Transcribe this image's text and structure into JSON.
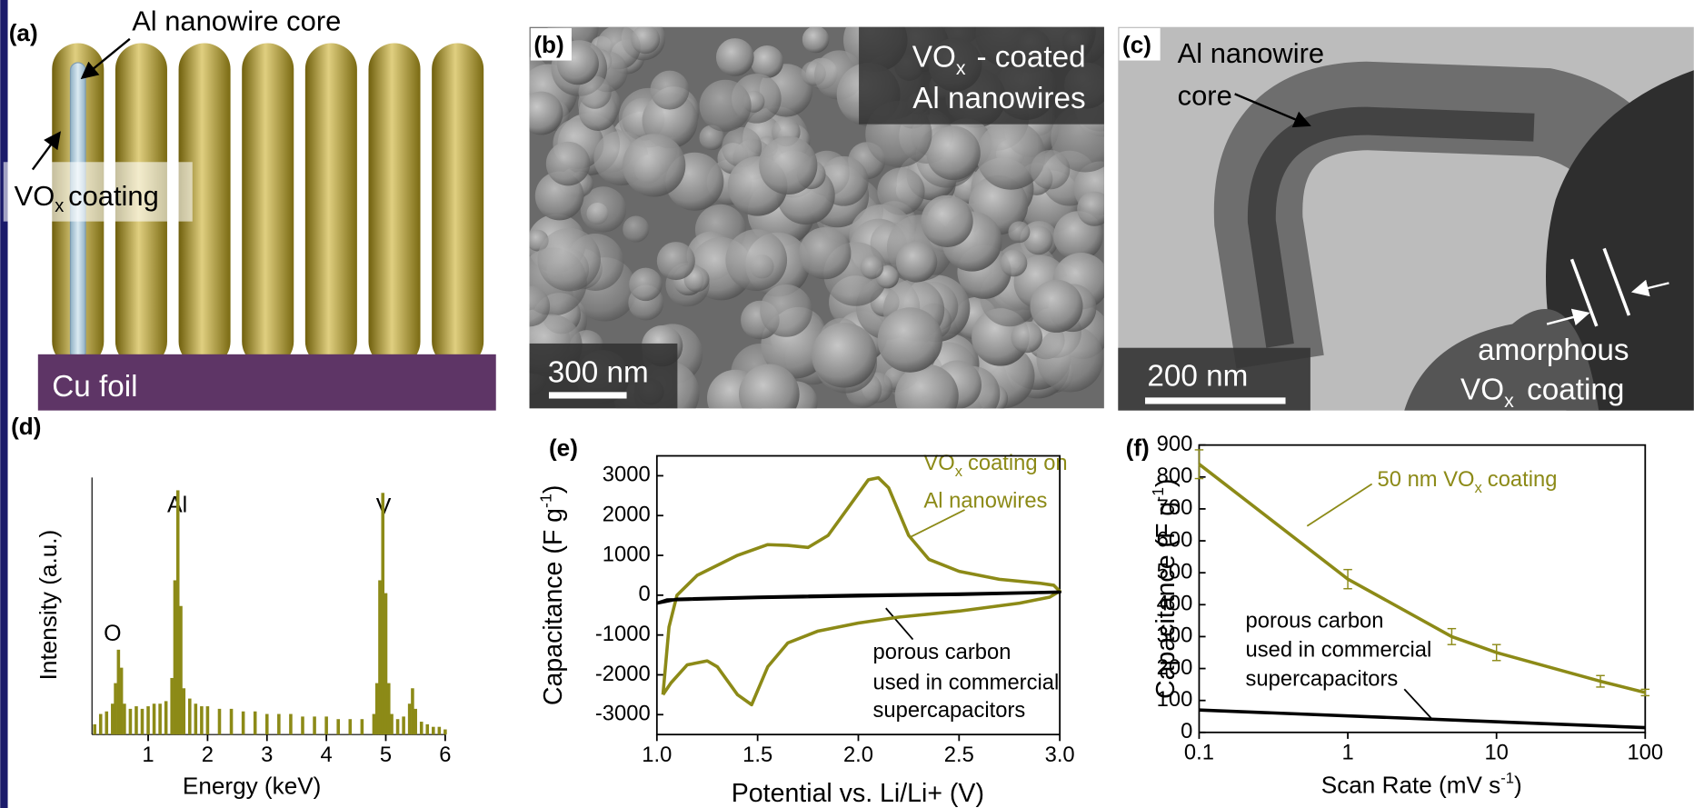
{
  "panel_a": {
    "label": "(a)",
    "core_label": "Al nanowire core",
    "coating_label": [
      "VO",
      "x",
      "coating"
    ],
    "foil_label": "Cu foil"
  },
  "panel_b": {
    "label": "(b)",
    "caption_line1": [
      "VO",
      "x",
      "- coated"
    ],
    "caption_line2": "Al nanowires",
    "scale_bar": "300 nm"
  },
  "panel_c": {
    "label": "(c)",
    "core_label": [
      "Al nanowire",
      "core"
    ],
    "coating_label": [
      "amorphous",
      "VO",
      "x",
      "coating"
    ],
    "scale_bar": "200 nm"
  },
  "chart_data": [
    {
      "type": "bar",
      "panel_label": "(d)",
      "x_label": "Energy (keV)",
      "y_label": "Intensity (a.u.)",
      "peak_labels": [
        "O",
        "Al",
        "V"
      ],
      "color": "#8c8a17",
      "x": [
        0.1,
        0.2,
        0.3,
        0.4,
        0.45,
        0.5,
        0.55,
        0.6,
        0.7,
        0.8,
        0.9,
        1.0,
        1.1,
        1.2,
        1.3,
        1.4,
        1.45,
        1.5,
        1.55,
        1.6,
        1.7,
        1.8,
        1.9,
        2.0,
        2.2,
        2.4,
        2.6,
        2.8,
        3.0,
        3.2,
        3.4,
        3.6,
        3.8,
        4.0,
        4.2,
        4.4,
        4.6,
        4.8,
        4.85,
        4.9,
        4.95,
        5.0,
        5.05,
        5.1,
        5.2,
        5.3,
        5.4,
        5.45,
        5.5,
        5.6,
        5.7,
        5.8,
        5.9,
        6.0
      ],
      "values": [
        4,
        8,
        9,
        12,
        20,
        33,
        26,
        12,
        10,
        11,
        10,
        11,
        12,
        12,
        13,
        22,
        60,
        95,
        50,
        18,
        14,
        12,
        11,
        11,
        10,
        10,
        9,
        9,
        8,
        8,
        8,
        7,
        7,
        7,
        6,
        6,
        6,
        8,
        20,
        60,
        94,
        55,
        20,
        8,
        6,
        7,
        12,
        18,
        10,
        5,
        4,
        3,
        3,
        2
      ],
      "xlim": [
        0,
        6
      ],
      "xticks": [
        1,
        2,
        3,
        4,
        5,
        6
      ],
      "ylim": [
        0,
        100
      ]
    },
    {
      "type": "line",
      "panel_label": "(e)",
      "x_label": "Potential vs. Li/Li+ (V)",
      "y_label": [
        "Capacitance (F g",
        "-1",
        ")"
      ],
      "annotation_vox": [
        [
          "VO",
          "x",
          "coating on"
        ],
        "Al nanowires"
      ],
      "annotation_carbon": [
        "porous carbon",
        "used in commercial",
        "supercapacitors"
      ],
      "series": [
        {
          "name": "VOx coating on Al nanowires",
          "color": "#8c8a17",
          "x": [
            1.03,
            1.06,
            1.1,
            1.2,
            1.4,
            1.55,
            1.65,
            1.75,
            1.85,
            1.95,
            2.05,
            2.1,
            2.15,
            2.25,
            2.35,
            2.5,
            2.7,
            2.9,
            2.97,
            3.0,
            2.95,
            2.8,
            2.5,
            2.2,
            2.0,
            1.8,
            1.65,
            1.55,
            1.47,
            1.4,
            1.3,
            1.25,
            1.15,
            1.07,
            1.03
          ],
          "values": [
            -2500,
            -800,
            0,
            500,
            1000,
            1270,
            1250,
            1200,
            1500,
            2200,
            2900,
            2950,
            2700,
            1500,
            900,
            600,
            400,
            300,
            250,
            100,
            -50,
            -200,
            -400,
            -550,
            -700,
            -900,
            -1200,
            -1800,
            -2750,
            -2500,
            -1800,
            -1650,
            -1750,
            -2200,
            -2500
          ]
        },
        {
          "name": "porous carbon used in commercial supercapacitors",
          "color": "#000000",
          "x": [
            1.0,
            1.1,
            1.5,
            2.0,
            2.5,
            3.0,
            2.5,
            2.0,
            1.5,
            1.05,
            1.0
          ],
          "values": [
            -200,
            -100,
            -50,
            0,
            30,
            80,
            20,
            -20,
            -60,
            -120,
            -200
          ]
        }
      ],
      "xlim": [
        1,
        3
      ],
      "xticks": [
        {
          "value": 1,
          "label": "1.0"
        },
        1.5,
        {
          "value": 2,
          "label": "2.0"
        },
        2.5,
        {
          "value": 3,
          "label": "3.0"
        }
      ],
      "ylim": [
        -3500,
        3500
      ],
      "yticks": [
        -3000,
        -2000,
        -1000,
        0,
        1000,
        2000,
        3000
      ]
    },
    {
      "type": "line",
      "panel_label": "(f)",
      "x_label": [
        "Scan Rate (mV s",
        "-1",
        ")"
      ],
      "y_label": [
        "Capacitance (F g",
        "-1",
        ")"
      ],
      "annotation_vox": [
        "50 nm VO",
        "x",
        "coating"
      ],
      "annotation_carbon": [
        "porous carbon",
        "used in commercial",
        "supercapacitors"
      ],
      "xlog": true,
      "series": [
        {
          "name": "50 nm VOx coating",
          "color": "#8c8a17",
          "x": [
            0.1,
            1,
            5,
            10,
            50,
            100
          ],
          "values": [
            840,
            480,
            300,
            250,
            160,
            125
          ],
          "errors": [
            45,
            30,
            25,
            25,
            18,
            10
          ]
        },
        {
          "name": "porous carbon used in commercial supercapacitors",
          "color": "#000000",
          "x": [
            0.1,
            100
          ],
          "values": [
            70,
            15
          ]
        }
      ],
      "xlim": [
        0.1,
        100
      ],
      "xticks": [
        0.1,
        1,
        10,
        100
      ],
      "ylim": [
        0,
        900
      ],
      "yticks": [
        0,
        100,
        200,
        300,
        400,
        500,
        600,
        700,
        800,
        900
      ]
    }
  ]
}
